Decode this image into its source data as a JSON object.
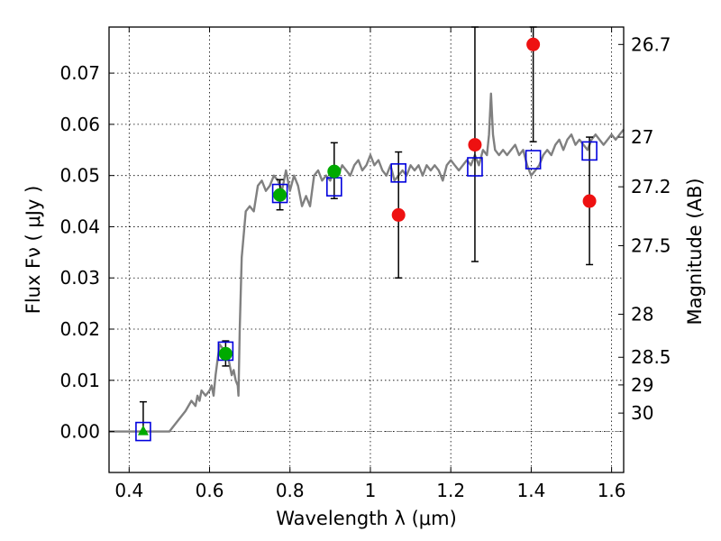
{
  "chart_data": {
    "type": "scatter",
    "title": "",
    "xlabel": "Wavelength  λ (μm)",
    "ylabel": "Flux  Fν  ( μJy )",
    "y2label": "Magnitude (AB)",
    "xlim": [
      0.35,
      1.63
    ],
    "ylim": [
      -0.008,
      0.079
    ],
    "x_ticks": [
      0.4,
      0.6,
      0.8,
      1.0,
      1.2,
      1.4,
      1.6
    ],
    "x_tick_labels": [
      "0.4",
      "0.6",
      "0.8",
      "1",
      "1.2",
      "1.4",
      "1.6"
    ],
    "y_ticks": [
      0.0,
      0.01,
      0.02,
      0.03,
      0.04,
      0.05,
      0.06,
      0.07
    ],
    "y_tick_labels": [
      "0.00",
      "0.01",
      "0.02",
      "0.03",
      "0.04",
      "0.05",
      "0.06",
      "0.07"
    ],
    "right_ticks": [
      {
        "label": "26.7",
        "flux": 0.0756
      },
      {
        "label": "27",
        "flux": 0.0575
      },
      {
        "label": "27.2",
        "flux": 0.0478
      },
      {
        "label": "27.5",
        "flux": 0.0363
      },
      {
        "label": "28",
        "flux": 0.0229
      },
      {
        "label": "28.5",
        "flux": 0.0145
      },
      {
        "label": "29",
        "flux": 0.0091
      },
      {
        "label": "30",
        "flux": 0.0036
      }
    ],
    "grid": true,
    "colors": {
      "model": "#808080",
      "model_points": "#0000dd",
      "green_points": "#00aa00",
      "red_points": "#ee1111",
      "error_bars": "#000000",
      "zero_line": "#808080"
    },
    "series": [
      {
        "marker": "line",
        "color": "#808080",
        "x": [
          0.35,
          0.5,
          0.51,
          0.54,
          0.555,
          0.565,
          0.57,
          0.575,
          0.58,
          0.59,
          0.6,
          0.605,
          0.61,
          0.615,
          0.62,
          0.625,
          0.635,
          0.64,
          0.645,
          0.65,
          0.655,
          0.66,
          0.665,
          0.67,
          0.672,
          0.675,
          0.68,
          0.69,
          0.7,
          0.71,
          0.72,
          0.73,
          0.74,
          0.75,
          0.76,
          0.77,
          0.78,
          0.79,
          0.8,
          0.81,
          0.82,
          0.83,
          0.84,
          0.85,
          0.86,
          0.87,
          0.88,
          0.89,
          0.9,
          0.91,
          0.92,
          0.93,
          0.94,
          0.95,
          0.96,
          0.97,
          0.98,
          0.99,
          1.0,
          1.01,
          1.02,
          1.03,
          1.04,
          1.05,
          1.06,
          1.07,
          1.08,
          1.09,
          1.1,
          1.11,
          1.12,
          1.13,
          1.14,
          1.15,
          1.16,
          1.17,
          1.18,
          1.19,
          1.2,
          1.21,
          1.22,
          1.23,
          1.24,
          1.25,
          1.26,
          1.27,
          1.28,
          1.29,
          1.295,
          1.3,
          1.305,
          1.31,
          1.32,
          1.33,
          1.34,
          1.35,
          1.36,
          1.37,
          1.38,
          1.39,
          1.4,
          1.41,
          1.42,
          1.43,
          1.44,
          1.45,
          1.46,
          1.47,
          1.48,
          1.49,
          1.5,
          1.51,
          1.52,
          1.53,
          1.54,
          1.55,
          1.56,
          1.57,
          1.58,
          1.59,
          1.6,
          1.61,
          1.62,
          1.63
        ],
        "y": [
          0.0,
          0.0,
          0.001,
          0.004,
          0.006,
          0.005,
          0.007,
          0.006,
          0.008,
          0.007,
          0.008,
          0.009,
          0.007,
          0.011,
          0.014,
          0.017,
          0.016,
          0.014,
          0.015,
          0.013,
          0.011,
          0.012,
          0.01,
          0.009,
          0.007,
          0.02,
          0.034,
          0.043,
          0.044,
          0.043,
          0.048,
          0.049,
          0.047,
          0.048,
          0.05,
          0.049,
          0.047,
          0.051,
          0.047,
          0.05,
          0.048,
          0.044,
          0.046,
          0.044,
          0.05,
          0.051,
          0.049,
          0.05,
          0.049,
          0.051,
          0.05,
          0.052,
          0.051,
          0.05,
          0.052,
          0.053,
          0.051,
          0.052,
          0.054,
          0.052,
          0.053,
          0.051,
          0.05,
          0.052,
          0.049,
          0.05,
          0.051,
          0.05,
          0.052,
          0.051,
          0.052,
          0.05,
          0.052,
          0.051,
          0.052,
          0.051,
          0.049,
          0.052,
          0.053,
          0.052,
          0.051,
          0.052,
          0.053,
          0.052,
          0.054,
          0.052,
          0.055,
          0.054,
          0.058,
          0.066,
          0.058,
          0.055,
          0.054,
          0.055,
          0.054,
          0.055,
          0.056,
          0.054,
          0.055,
          0.052,
          0.05,
          0.051,
          0.052,
          0.054,
          0.055,
          0.054,
          0.056,
          0.057,
          0.055,
          0.057,
          0.058,
          0.056,
          0.057,
          0.056,
          0.055,
          0.057,
          0.058,
          0.057,
          0.056,
          0.057,
          0.058,
          0.057,
          0.058,
          0.059
        ]
      },
      {
        "marker": "square",
        "color": "#0000dd",
        "x": [
          0.435,
          0.64,
          0.775,
          0.91,
          1.07,
          1.26,
          1.405,
          1.545
        ],
        "y": [
          0.0,
          0.0157,
          0.0465,
          0.0478,
          0.0505,
          0.0517,
          0.0531,
          0.0548
        ]
      },
      {
        "marker": "triangle",
        "color": "#00aa00",
        "x": [
          0.435
        ],
        "y": [
          0.0
        ],
        "err_low": [
          0.0
        ],
        "err_high": [
          0.0058
        ]
      },
      {
        "marker": "circle",
        "color": "#00aa00",
        "x": [
          0.64,
          0.775,
          0.91
        ],
        "y": [
          0.0152,
          0.0462,
          0.0508
        ],
        "err_low": [
          0.0128,
          0.0433,
          0.0455
        ],
        "err_high": [
          0.0177,
          0.0492,
          0.0564
        ]
      },
      {
        "marker": "circle",
        "color": "#ee1111",
        "x": [
          1.07,
          1.26,
          1.405,
          1.545
        ],
        "y": [
          0.0423,
          0.056,
          0.0756,
          0.045
        ],
        "err_low": [
          0.03,
          0.0332,
          0.0566,
          0.0326
        ],
        "err_high": [
          0.0546,
          0.0795,
          0.0795,
          0.0575
        ]
      }
    ]
  }
}
